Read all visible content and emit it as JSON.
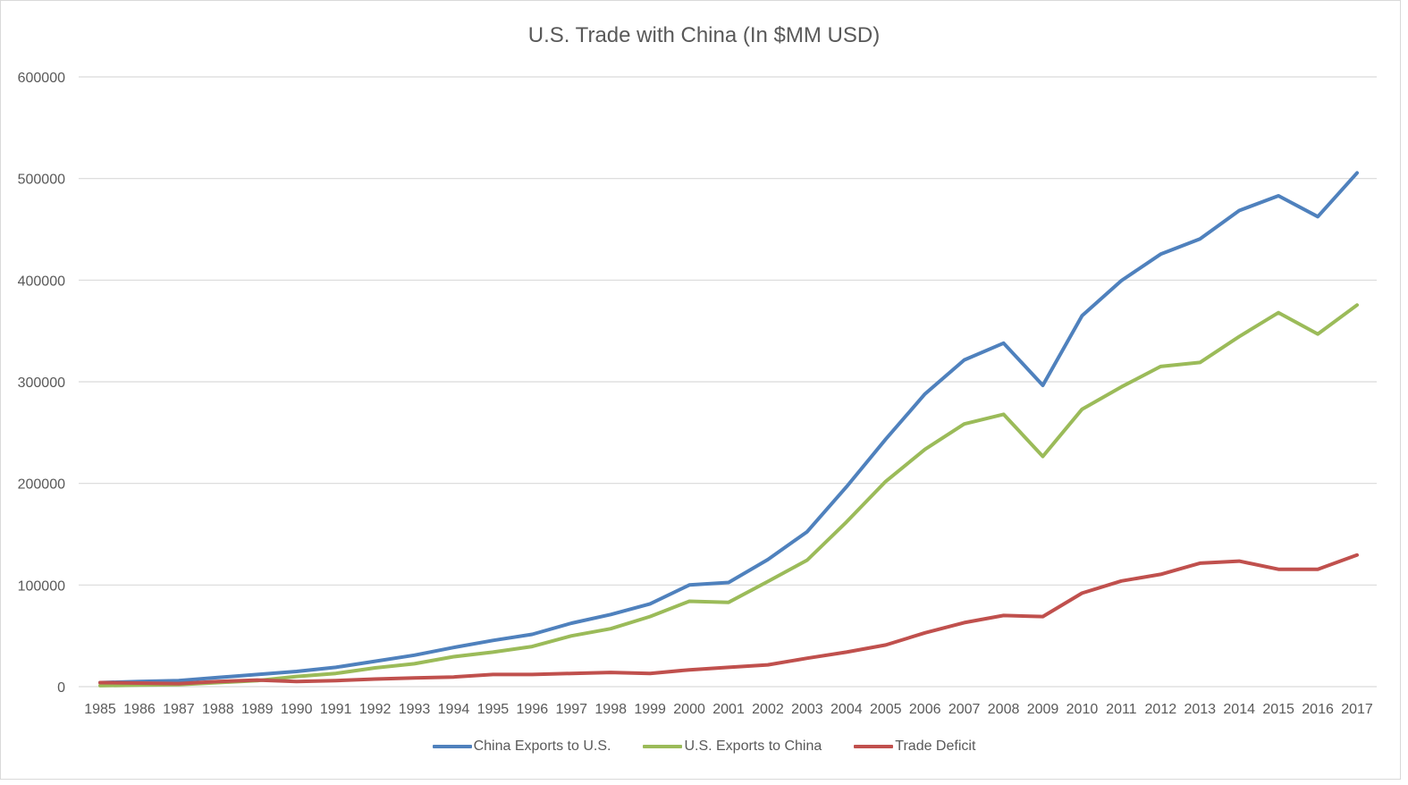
{
  "chart_data": {
    "type": "line",
    "title": "U.S. Trade with China (In $MM USD)",
    "xlabel": "",
    "ylabel": "",
    "ylim": [
      0,
      600000
    ],
    "yticks": [
      "0",
      "100000",
      "200000",
      "300000",
      "400000",
      "500000",
      "600000"
    ],
    "grid": true,
    "legend_position": "bottom",
    "x": [
      "1985",
      "1986",
      "1987",
      "1988",
      "1989",
      "1990",
      "1991",
      "1992",
      "1993",
      "1994",
      "1995",
      "1996",
      "1997",
      "1998",
      "1999",
      "2000",
      "2001",
      "2002",
      "2003",
      "2004",
      "2005",
      "2006",
      "2007",
      "2008",
      "2009",
      "2010",
      "2011",
      "2012",
      "2013",
      "2014",
      "2015",
      "2016",
      "2017"
    ],
    "series": [
      {
        "name": "China Exports to U.S.",
        "color": "#4f81bd",
        "values": [
          4000,
          5000,
          6000,
          9000,
          12000,
          15000,
          19000,
          25000,
          31000,
          38500,
          45500,
          51500,
          62500,
          71000,
          81500,
          100000,
          102500,
          125000,
          152500,
          196500,
          243500,
          288000,
          321500,
          338000,
          296500,
          365000,
          399500,
          425500,
          440500,
          468500,
          483000,
          462500,
          505500
        ]
      },
      {
        "name": "U.S. Exports to China",
        "color": "#9bbb59",
        "values": [
          1000,
          1500,
          2000,
          4000,
          6000,
          10000,
          13000,
          18500,
          22500,
          29500,
          34000,
          39500,
          50000,
          57000,
          69000,
          84000,
          83000,
          103500,
          124500,
          162000,
          202000,
          233500,
          258500,
          268000,
          226500,
          273000,
          295000,
          315000,
          319000,
          344500,
          368000,
          347000,
          375500
        ]
      },
      {
        "name": "Trade Deficit",
        "color": "#c0504d",
        "values": [
          4000,
          3500,
          3000,
          5000,
          6500,
          5000,
          6000,
          7500,
          8500,
          9500,
          12000,
          12000,
          13000,
          14000,
          13000,
          16500,
          19000,
          21500,
          28000,
          34000,
          41000,
          53000,
          63000,
          70000,
          69000,
          92000,
          104000,
          110500,
          121500,
          123500,
          115500,
          115500,
          129500
        ]
      }
    ]
  }
}
